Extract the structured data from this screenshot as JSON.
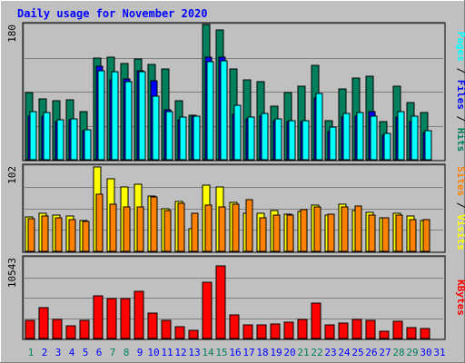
{
  "chart_data": {
    "type": "bar",
    "title": "Daily usage for November 2020",
    "days": [
      "1",
      "2",
      "3",
      "4",
      "5",
      "6",
      "7",
      "8",
      "9",
      "10",
      "11",
      "12",
      "13",
      "14",
      "15",
      "16",
      "17",
      "18",
      "19",
      "20",
      "21",
      "22",
      "23",
      "24",
      "25",
      "26",
      "27",
      "28",
      "29",
      "30",
      "31"
    ],
    "weekend_days": [
      1,
      7,
      8,
      14,
      15,
      21,
      22,
      28,
      29
    ],
    "panels": [
      {
        "name": "hits-files-pages",
        "ymax_label": "180",
        "ymax": 180,
        "series": [
          {
            "name": "Hits",
            "color": "#00805c",
            "values": [
              89,
              80,
              78,
              79,
              64,
              134,
              135,
              127,
              133,
              126,
              120,
              78,
              59,
              179,
              172,
              120,
              106,
              103,
              71,
              89,
              97,
              125,
              52,
              93,
              108,
              110,
              50,
              97,
              76,
              62,
              0
            ]
          },
          {
            "name": "Files",
            "color": "#0000ff",
            "values": [
              58,
              57,
              50,
              53,
              38,
              124,
              105,
              107,
              118,
              104,
              66,
              53,
              57,
              135,
              136,
              60,
              54,
              57,
              51,
              50,
              50,
              81,
              37,
              56,
              57,
              63,
              33,
              56,
              50,
              36,
              0
            ]
          },
          {
            "name": "Pages",
            "color": "#00ffff",
            "values": [
              63,
              62,
              53,
              54,
              40,
              118,
              116,
              103,
              116,
              84,
              64,
              56,
              58,
              130,
              131,
              72,
              56,
              61,
              54,
              52,
              51,
              87,
              43,
              61,
              62,
              57,
              35,
              63,
              57,
              38,
              0
            ]
          }
        ]
      },
      {
        "name": "sites-visits",
        "ymax_label": "102",
        "ymax": 102,
        "series": [
          {
            "name": "Visits",
            "color": "#ffff00",
            "values": [
              41,
              45,
              43,
              42,
              36,
              100,
              86,
              76,
              79,
              65,
              50,
              59,
              27,
              78,
              76,
              58,
              45,
              45,
              48,
              44,
              47,
              55,
              43,
              56,
              48,
              46,
              40,
              45,
              42,
              36,
              0
            ]
          },
          {
            "name": "Sites",
            "color": "#ff8000",
            "values": [
              39,
              42,
              40,
              38,
              35,
              68,
              56,
              53,
              53,
              64,
              48,
              57,
              45,
              55,
              53,
              56,
              61,
              40,
              43,
              43,
              49,
              53,
              44,
              53,
              54,
              43,
              40,
              43,
              38,
              38,
              0
            ]
          }
        ]
      },
      {
        "name": "kbytes",
        "ymax_label": "10543",
        "ymax": 10543,
        "series": [
          {
            "name": "KBytes",
            "color": "#ff0000",
            "values": [
              2390,
              4040,
              2430,
              1650,
              2390,
              5550,
              5100,
              5100,
              6080,
              3250,
              2330,
              1540,
              1040,
              7280,
              9340,
              3060,
              1700,
              1720,
              1880,
              2130,
              2500,
              4550,
              1790,
              2050,
              2490,
              2310,
              930,
              2170,
              1380,
              1300,
              0
            ]
          }
        ]
      }
    ],
    "side_labels": [
      {
        "parts": [
          {
            "text": "Pages",
            "color": "#00ffff"
          },
          {
            "text": " / ",
            "color": "#000000"
          },
          {
            "text": "Files",
            "color": "#0000ff"
          },
          {
            "text": " / ",
            "color": "#000000"
          },
          {
            "text": "Hits",
            "color": "#00805c"
          }
        ]
      },
      {
        "parts": [
          {
            "text": "Sites",
            "color": "#ff8000"
          },
          {
            "text": " / ",
            "color": "#000000"
          },
          {
            "text": "Visits",
            "color": "#ffff00"
          }
        ]
      },
      {
        "parts": [
          {
            "text": "KBytes",
            "color": "#ff0000"
          }
        ]
      }
    ],
    "colors": {
      "weekday_label": "#0000ff",
      "weekend_label": "#00805c",
      "plot_background": "#c0c0c0",
      "frame_background": "#c0c0c0",
      "gridline": "#808080"
    },
    "grid": true
  }
}
